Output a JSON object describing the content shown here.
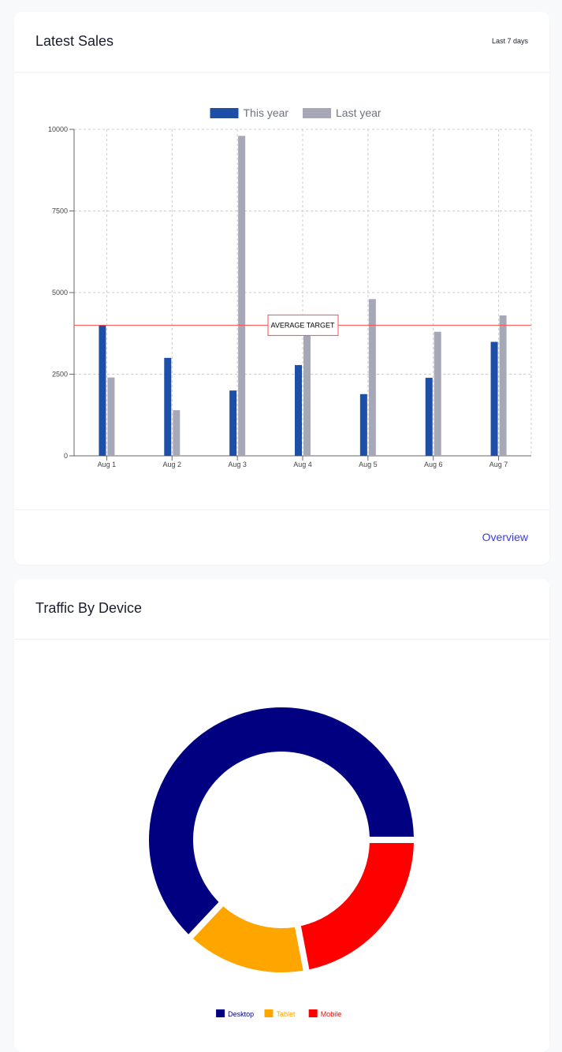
{
  "sales_card": {
    "title": "Latest Sales",
    "range_label": "Last 7 days",
    "footer_link": "Overview"
  },
  "traffic_card": {
    "title": "Traffic By Device"
  },
  "chart_data": [
    {
      "type": "bar",
      "categories": [
        "Aug 1",
        "Aug 2",
        "Aug 3",
        "Aug 4",
        "Aug 5",
        "Aug 6",
        "Aug 7"
      ],
      "series": [
        {
          "name": "This year",
          "color": "#1e4fa8",
          "values": [
            4000,
            3000,
            2000,
            2780,
            1890,
            2390,
            3490
          ]
        },
        {
          "name": "Last year",
          "color": "#a6a8b8",
          "values": [
            2400,
            1398,
            9800,
            3908,
            4800,
            3800,
            4300
          ]
        }
      ],
      "ylim": [
        0,
        10000
      ],
      "yticks": [
        0,
        2500,
        5000,
        7500,
        10000
      ],
      "grid": true,
      "legend_position": "top",
      "reference_line": {
        "value": 4000,
        "label": "AVERAGE TARGET",
        "color": "#ff4d4d"
      }
    },
    {
      "type": "pie",
      "variant": "donut",
      "labels": [
        "Desktop",
        "Tablet",
        "Mobile"
      ],
      "values": [
        63,
        15,
        22
      ],
      "colors": [
        "#000080",
        "#ffa500",
        "#ff0000"
      ],
      "legend_position": "bottom"
    }
  ]
}
